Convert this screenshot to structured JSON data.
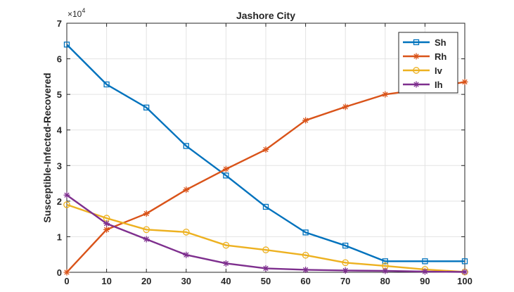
{
  "chart_data": {
    "type": "line",
    "title": "Jashore City",
    "xlabel": "",
    "ylabel": "Susceptible-Infected-Recovered",
    "y_exponent_label": "×10",
    "y_exponent_power": "4",
    "xlim": [
      0,
      100
    ],
    "ylim": [
      0,
      7
    ],
    "x_ticks": [
      0,
      10,
      20,
      30,
      40,
      50,
      60,
      70,
      80,
      90,
      100
    ],
    "y_ticks": [
      0,
      1,
      2,
      3,
      4,
      5,
      6,
      7
    ],
    "x_tick_labels": [
      "0",
      "10",
      "20",
      "30",
      "40",
      "50",
      "60",
      "70",
      "80",
      "90",
      "100"
    ],
    "y_tick_labels": [
      "0",
      "1",
      "2",
      "3",
      "4",
      "5",
      "6",
      "7"
    ],
    "grid": true,
    "legend_position": "top-right",
    "x": [
      0,
      10,
      20,
      30,
      40,
      50,
      60,
      70,
      80,
      90,
      100
    ],
    "series": [
      {
        "name": "Sh",
        "color": "#0072BD",
        "marker": "square",
        "values": [
          6.4,
          5.28,
          4.63,
          3.55,
          2.72,
          1.84,
          1.12,
          0.75,
          0.31,
          0.31,
          0.31
        ]
      },
      {
        "name": "Rh",
        "color": "#D95319",
        "marker": "asterisk",
        "values": [
          0.0,
          1.2,
          1.65,
          2.32,
          2.9,
          3.45,
          4.27,
          4.65,
          5.0,
          5.15,
          5.35
        ]
      },
      {
        "name": "Iv",
        "color": "#EDB120",
        "marker": "circle",
        "values": [
          1.9,
          1.52,
          1.2,
          1.13,
          0.76,
          0.63,
          0.48,
          0.27,
          0.18,
          0.08,
          0.01
        ]
      },
      {
        "name": "Ih",
        "color": "#7E2F8E",
        "marker": "asterisk",
        "values": [
          2.17,
          1.37,
          0.93,
          0.49,
          0.25,
          0.11,
          0.07,
          0.05,
          0.04,
          0.02,
          0.01
        ]
      }
    ]
  }
}
